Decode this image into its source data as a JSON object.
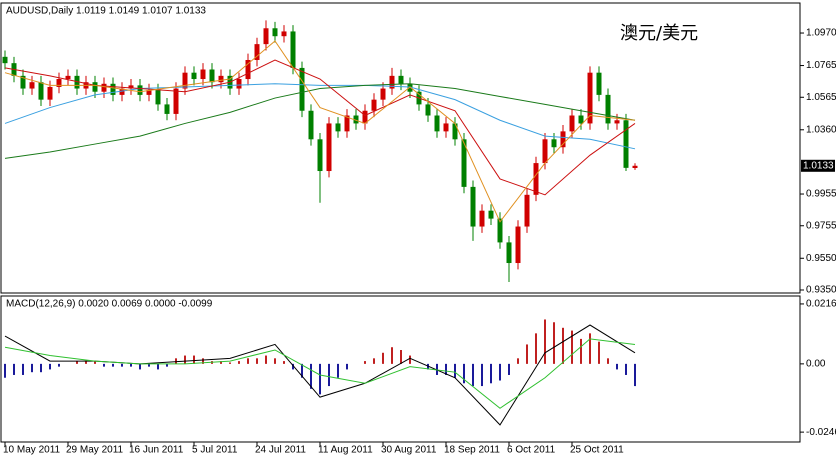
{
  "chart_data": [
    {
      "type": "candlestick",
      "title": "AUDUSD,Daily  1.0119 1.0149 1.0107 1.0133",
      "annotation": "澳元/美元",
      "categories": [
        "10 May 2011",
        null,
        null,
        null,
        null,
        null,
        null,
        "29 May 2011",
        null,
        null,
        null,
        null,
        null,
        null,
        "16 Jun 2011",
        null,
        null,
        null,
        null,
        null,
        null,
        "5 Jul 2011",
        null,
        null,
        null,
        null,
        null,
        null,
        "24 Jul 2011",
        null,
        null,
        null,
        null,
        null,
        null,
        "11 Aug 2011",
        null,
        null,
        null,
        null,
        null,
        null,
        "30 Aug 2011",
        null,
        null,
        null,
        null,
        null,
        null,
        "18 Sep 2011",
        null,
        null,
        null,
        null,
        null,
        null,
        "6 Oct 2011",
        null,
        null,
        null,
        null,
        null,
        null,
        "25 Oct 2011",
        null,
        null,
        null,
        null,
        null,
        null,
        null
      ],
      "open": [
        1.082,
        1.078,
        1.07,
        1.062,
        1.066,
        1.055,
        1.063,
        1.068,
        1.07,
        1.062,
        1.066,
        1.06,
        1.065,
        1.058,
        1.062,
        1.064,
        1.058,
        1.061,
        1.052,
        1.046,
        1.062,
        1.072,
        1.068,
        1.074,
        1.066,
        1.07,
        1.062,
        1.068,
        1.08,
        1.09,
        1.1,
        1.095,
        1.098,
        1.075,
        1.048,
        1.03,
        1.01,
        1.04,
        1.035,
        1.045,
        1.04,
        1.048,
        1.055,
        1.062,
        1.07,
        1.065,
        1.06,
        1.052,
        1.045,
        1.035,
        1.04,
        1.03,
        1.0,
        0.975,
        0.985,
        0.98,
        0.965,
        0.952,
        0.975,
        0.995,
        1.015,
        1.03,
        1.025,
        1.035,
        1.045,
        1.04,
        1.072,
        1.058,
        1.04,
        1.042,
        1.0119
      ],
      "high": [
        1.086,
        1.082,
        1.074,
        1.07,
        1.07,
        1.067,
        1.072,
        1.074,
        1.074,
        1.07,
        1.07,
        1.069,
        1.069,
        1.066,
        1.068,
        1.068,
        1.065,
        1.065,
        1.056,
        1.066,
        1.076,
        1.076,
        1.078,
        1.078,
        1.074,
        1.074,
        1.072,
        1.084,
        1.094,
        1.105,
        1.104,
        1.102,
        1.102,
        1.079,
        1.052,
        1.034,
        1.044,
        1.044,
        1.049,
        1.049,
        1.052,
        1.059,
        1.066,
        1.075,
        1.074,
        1.069,
        1.064,
        1.056,
        1.049,
        1.044,
        1.044,
        1.034,
        1.004,
        0.989,
        0.989,
        0.984,
        0.969,
        0.979,
        0.999,
        1.019,
        1.034,
        1.034,
        1.039,
        1.049,
        1.049,
        1.076,
        1.076,
        1.062,
        1.046,
        1.046,
        1.0149
      ],
      "low": [
        1.074,
        1.066,
        1.058,
        1.058,
        1.051,
        1.051,
        1.059,
        1.064,
        1.058,
        1.058,
        1.056,
        1.056,
        1.054,
        1.054,
        1.058,
        1.054,
        1.054,
        1.048,
        1.042,
        1.042,
        1.058,
        1.064,
        1.064,
        1.062,
        1.062,
        1.058,
        1.058,
        1.064,
        1.076,
        1.086,
        1.091,
        1.091,
        1.071,
        1.044,
        1.026,
        0.99,
        1.006,
        1.031,
        1.031,
        1.036,
        1.036,
        1.044,
        1.051,
        1.058,
        1.061,
        1.056,
        1.048,
        1.041,
        1.031,
        1.031,
        1.026,
        0.996,
        0.966,
        0.971,
        0.976,
        0.961,
        0.94,
        0.948,
        0.971,
        0.991,
        1.011,
        1.021,
        1.021,
        1.031,
        1.036,
        1.036,
        1.054,
        1.036,
        1.036,
        1.01,
        1.0107
      ],
      "close": [
        1.078,
        1.07,
        1.062,
        1.066,
        1.055,
        1.063,
        1.068,
        1.07,
        1.062,
        1.066,
        1.06,
        1.065,
        1.058,
        1.062,
        1.064,
        1.058,
        1.061,
        1.052,
        1.046,
        1.062,
        1.072,
        1.068,
        1.074,
        1.066,
        1.07,
        1.062,
        1.068,
        1.08,
        1.09,
        1.1,
        1.095,
        1.098,
        1.075,
        1.048,
        1.03,
        1.01,
        1.04,
        1.035,
        1.045,
        1.04,
        1.048,
        1.055,
        1.062,
        1.07,
        1.065,
        1.06,
        1.052,
        1.045,
        1.035,
        1.04,
        1.03,
        1.0,
        0.975,
        0.985,
        0.98,
        0.965,
        0.952,
        0.975,
        0.995,
        1.015,
        1.03,
        1.025,
        1.035,
        1.045,
        1.04,
        1.072,
        1.058,
        1.04,
        1.042,
        1.012,
        1.0133
      ],
      "up_color": "#d00000",
      "down_color": "#008000",
      "lines": [
        {
          "color": "#3aa0e0",
          "x": [
            0,
            5,
            10,
            15,
            20,
            25,
            30,
            35,
            40,
            45,
            50,
            55,
            60,
            65,
            70
          ],
          "values": [
            1.04,
            1.05,
            1.058,
            1.062,
            1.063,
            1.064,
            1.065,
            1.064,
            1.064,
            1.063,
            1.055,
            1.042,
            1.032,
            1.03,
            1.024
          ]
        },
        {
          "color": "#1a7a1a",
          "x": [
            0,
            5,
            10,
            15,
            20,
            25,
            30,
            35,
            40,
            45,
            50,
            55,
            60,
            65,
            70
          ],
          "values": [
            1.018,
            1.022,
            1.027,
            1.032,
            1.04,
            1.047,
            1.056,
            1.062,
            1.064,
            1.065,
            1.062,
            1.057,
            1.052,
            1.047,
            1.042
          ]
        },
        {
          "color": "#cc1010",
          "x": [
            0,
            5,
            10,
            15,
            20,
            25,
            30,
            35,
            40,
            45,
            50,
            55,
            60,
            65,
            70
          ],
          "values": [
            1.075,
            1.07,
            1.064,
            1.062,
            1.06,
            1.066,
            1.08,
            1.068,
            1.045,
            1.058,
            1.048,
            1.005,
            0.995,
            1.02,
            1.04
          ]
        },
        {
          "color": "#e09020",
          "x": [
            0,
            5,
            10,
            15,
            20,
            25,
            30,
            35,
            40,
            45,
            50,
            55,
            60,
            65,
            70
          ],
          "values": [
            1.072,
            1.064,
            1.064,
            1.06,
            1.064,
            1.068,
            1.092,
            1.05,
            1.04,
            1.063,
            1.04,
            0.978,
            1.015,
            1.045,
            1.042
          ]
        }
      ],
      "current_price": 1.0133,
      "ylim": [
        0.9331,
        1.1153
      ],
      "yticks": [
        {
          "value": 1.097,
          "label": "1.0970"
        },
        1.0765,
        1.0565,
        {
          "value": 1.036,
          "label": "1.0360"
        },
        0.9955,
        0.9755,
        {
          "value": 0.955,
          "label": "0.9550"
        },
        {
          "value": 0.935,
          "label": "0.9350"
        }
      ]
    },
    {
      "type": "macd",
      "title": "MACD(12,26,9) 0.0020 0.0069 0.0000 -0.0099",
      "values": [
        -0.005,
        -0.004,
        -0.004,
        -0.003,
        -0.003,
        -0.002,
        -0.001,
        0.0,
        0.001,
        0.001,
        0.001,
        -0.001,
        -0.001,
        -0.001,
        -0.001,
        -0.002,
        -0.001,
        -0.002,
        -0.001,
        0.002,
        0.003,
        0.003,
        0.002,
        0.001,
        0.001,
        0.0005,
        0.001,
        0.002,
        0.002,
        0.003,
        0.002,
        0.001,
        -0.002,
        -0.005,
        -0.009,
        -0.011,
        -0.008,
        -0.005,
        -0.002,
        0.0,
        0.001,
        0.002,
        0.004,
        0.006,
        0.005,
        0.003,
        0.0,
        -0.002,
        -0.004,
        -0.004,
        -0.005,
        -0.007,
        -0.008,
        -0.008,
        -0.007,
        -0.006,
        -0.004,
        0.002,
        0.007,
        0.011,
        0.016,
        0.015,
        0.013,
        0.012,
        0.009,
        0.011,
        0.008,
        0.002,
        -0.002,
        -0.004,
        -0.008
      ],
      "pos_color": "#c02020",
      "neg_color": "#1a1a9a",
      "lines": [
        {
          "color": "#000000",
          "x": [
            0,
            5,
            10,
            15,
            20,
            25,
            30,
            35,
            40,
            45,
            50,
            55,
            60,
            65,
            70
          ],
          "values": [
            0.01,
            0.001,
            0.001,
            0.0,
            0.001,
            0.002,
            0.007,
            -0.012,
            -0.007,
            0.002,
            -0.005,
            -0.022,
            0.004,
            0.014,
            0.004
          ]
        },
        {
          "color": "#30c030",
          "x": [
            0,
            5,
            10,
            15,
            20,
            25,
            30,
            35,
            40,
            45,
            50,
            55,
            60,
            65,
            70
          ],
          "values": [
            0.006,
            0.003,
            0.001,
            0.0,
            0.0,
            0.001,
            0.005,
            -0.004,
            -0.007,
            -0.001,
            -0.003,
            -0.016,
            -0.005,
            0.009,
            0.007
          ]
        }
      ],
      "ylim": [
        -0.0278,
        0.0241
      ],
      "yticks": [
        0.0216,
        {
          "value": 0,
          "label": "0.00"
        },
        -0.0246
      ]
    }
  ]
}
